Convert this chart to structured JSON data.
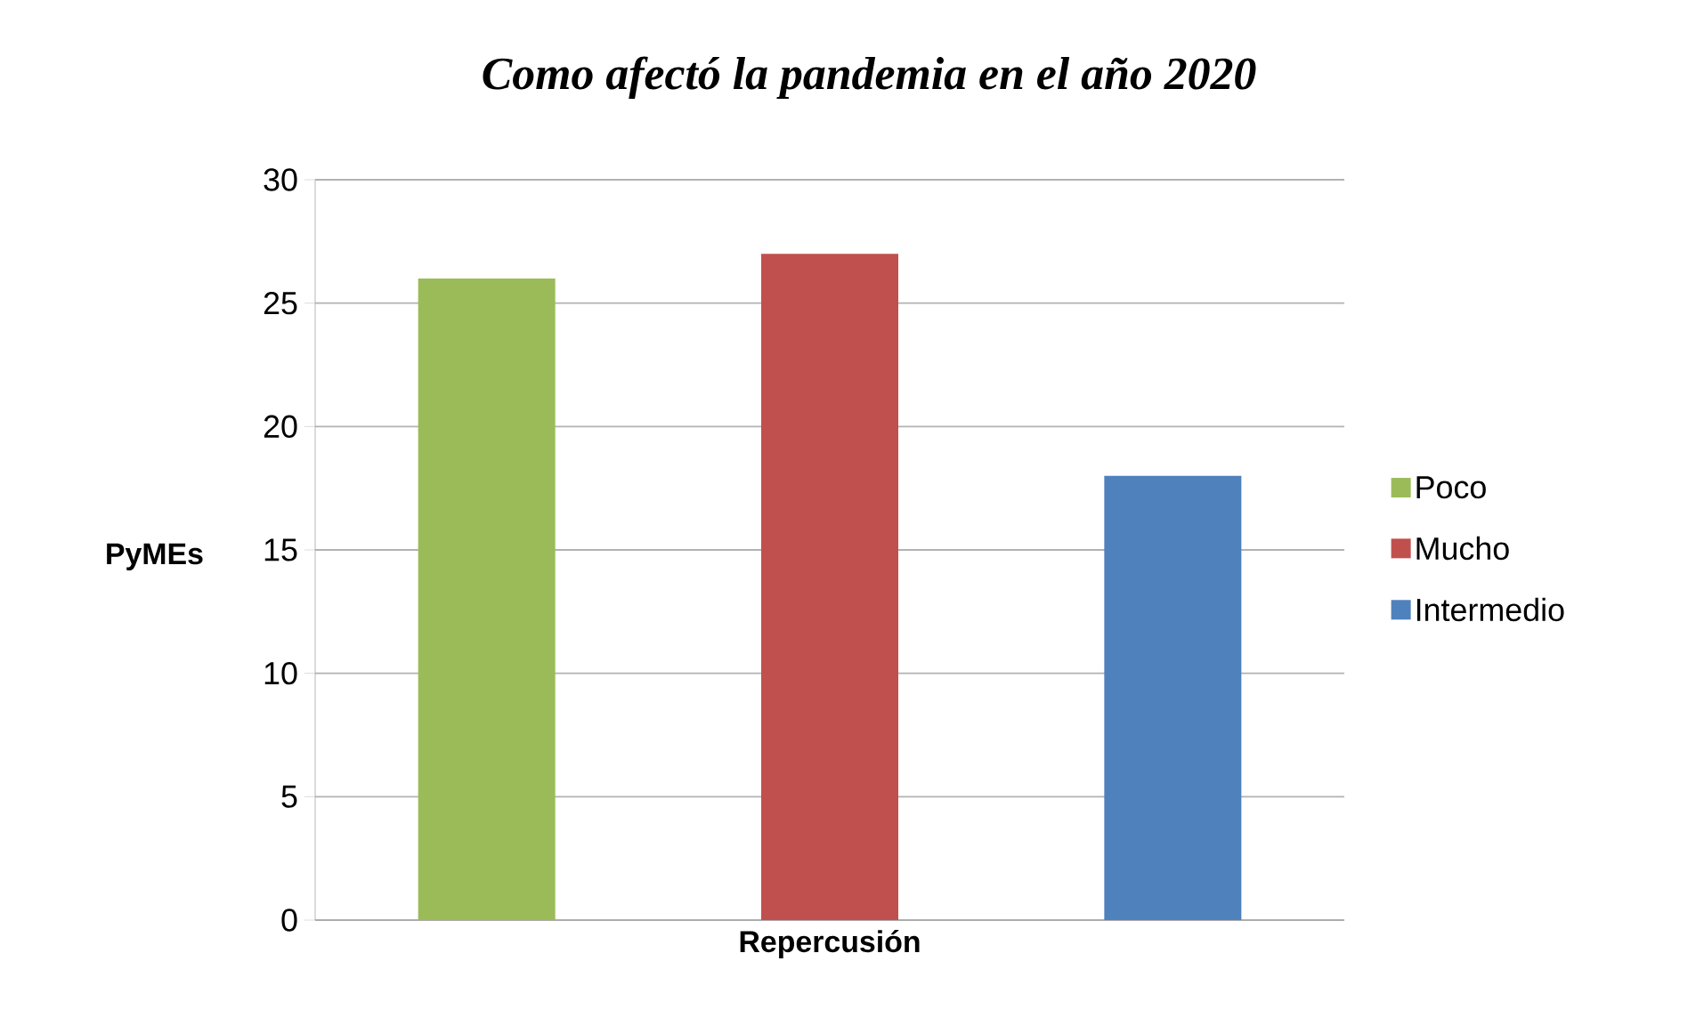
{
  "chart_data": {
    "type": "bar",
    "title": "Como afectó la pandemia en el año 2020",
    "xlabel": "Repercusión",
    "ylabel": "PyMEs",
    "categories": [
      null,
      null,
      null
    ],
    "series": [
      {
        "name": "Poco",
        "color": "#9bbb59",
        "values": [
          26,
          null,
          null
        ]
      },
      {
        "name": "Mucho",
        "color": "#c0504d",
        "values": [
          null,
          27,
          null
        ]
      },
      {
        "name": "Intermedio",
        "color": "#4f81bd",
        "values": [
          null,
          null,
          18
        ]
      }
    ],
    "ylim": [
      0,
      30
    ],
    "yticks": [
      0,
      5,
      10,
      15,
      20,
      25,
      30
    ],
    "grid": "y",
    "legend": "right"
  }
}
